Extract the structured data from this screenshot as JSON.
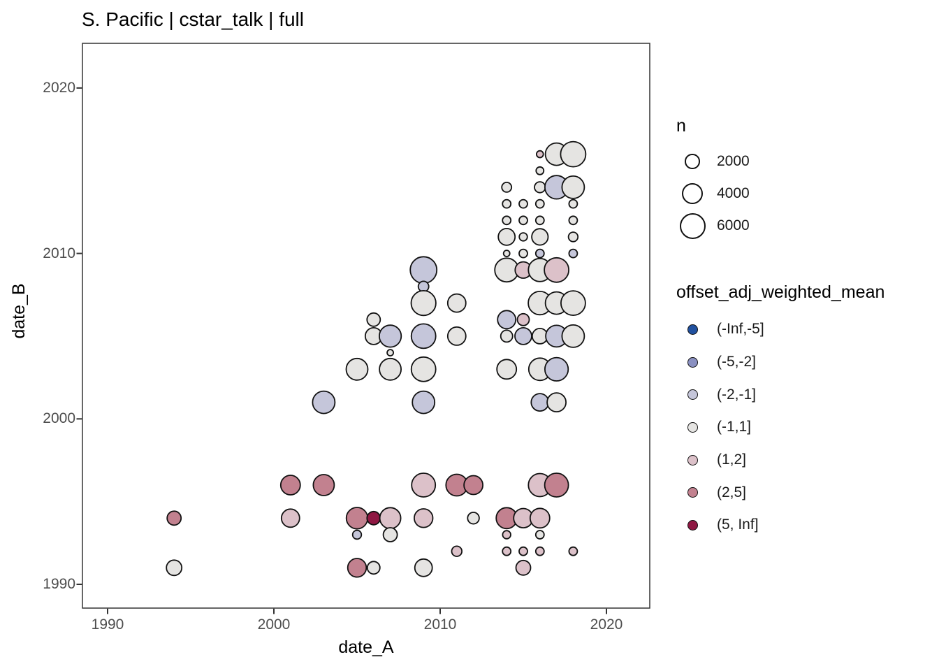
{
  "title": "S. Pacific | cstar_talk | full",
  "axes": {
    "x": {
      "label": "date_A",
      "ticks": [
        "1990",
        "2000",
        "2010",
        "2020"
      ]
    },
    "y": {
      "label": "date_B",
      "ticks": [
        "1990",
        "2000",
        "2010",
        "2020"
      ]
    }
  },
  "legend_size": {
    "title": "n",
    "entries": [
      {
        "n": 2000,
        "label": "2000"
      },
      {
        "n": 4000,
        "label": "4000"
      },
      {
        "n": 6000,
        "label": "6000"
      }
    ]
  },
  "legend_color": {
    "title": "offset_adj_weighted_mean",
    "entries": [
      {
        "label": "(-Inf,-5]",
        "color": "#21519f"
      },
      {
        "label": "(-5,-2]",
        "color": "#8a90c1"
      },
      {
        "label": "(-2,-1]",
        "color": "#c5c6da"
      },
      {
        "label": "(-1,1]",
        "color": "#e5e4e2"
      },
      {
        "label": "(1,2]",
        "color": "#dcc1c9"
      },
      {
        "label": "(2,5]",
        "color": "#c2818f"
      },
      {
        "label": "(5, Inf]",
        "color": "#8f1843"
      }
    ]
  },
  "chart_data": {
    "type": "scatter",
    "title": "S. Pacific | cstar_talk | full",
    "xlabel": "date_A",
    "ylabel": "date_B",
    "x_ticks": [
      1990,
      2000,
      2010,
      2020
    ],
    "y_ticks": [
      1990,
      2000,
      2010,
      2020
    ],
    "xlim": [
      1988.5,
      2022.6
    ],
    "ylim": [
      1988.5,
      2022.9
    ],
    "grid": false,
    "legend_position": "right",
    "size_scale": {
      "name": "n",
      "breaks": [
        2000,
        4000,
        6000
      ],
      "area_proportional": true
    },
    "color_scale": {
      "name": "offset_adj_weighted_mean",
      "bins": [
        "(-Inf,-5]",
        "(-5,-2]",
        "(-2,-1]",
        "(-1,1]",
        "(1,2]",
        "(2,5]",
        "(5, Inf]"
      ]
    },
    "points": [
      {
        "a": 1994,
        "b": 1994,
        "n": 1750,
        "bin": "(2,5]"
      },
      {
        "a": 1994,
        "b": 1991,
        "n": 2120,
        "bin": "(-1,1]"
      },
      {
        "a": 2001,
        "b": 1996,
        "n": 3430,
        "bin": "(2,5]"
      },
      {
        "a": 2001,
        "b": 1994,
        "n": 2960,
        "bin": "(1,2]"
      },
      {
        "a": 2003,
        "b": 2001,
        "n": 4480,
        "bin": "(-2,-1]"
      },
      {
        "a": 2003,
        "b": 1996,
        "n": 3940,
        "bin": "(2,5]"
      },
      {
        "a": 2005,
        "b": 2003,
        "n": 4210,
        "bin": "(-1,1]"
      },
      {
        "a": 2005,
        "b": 1994,
        "n": 4100,
        "bin": "(2,5]"
      },
      {
        "a": 2005,
        "b": 1993,
        "n": 700,
        "bin": "(-2,-1]"
      },
      {
        "a": 2005,
        "b": 1991,
        "n": 3100,
        "bin": "(2,5]"
      },
      {
        "a": 2006,
        "b": 2006,
        "n": 1580,
        "bin": "(-1,1]"
      },
      {
        "a": 2006,
        "b": 2005,
        "n": 2520,
        "bin": "(-1,1]"
      },
      {
        "a": 2006,
        "b": 1994,
        "n": 1580,
        "bin": "(5, Inf]"
      },
      {
        "a": 2006,
        "b": 1991,
        "n": 1420,
        "bin": "(-1,1]"
      },
      {
        "a": 2007,
        "b": 2005,
        "n": 4320,
        "bin": "(-2,-1]"
      },
      {
        "a": 2007,
        "b": 2004,
        "n": 350,
        "bin": "(-1,1]"
      },
      {
        "a": 2007,
        "b": 2003,
        "n": 4210,
        "bin": "(-1,1]"
      },
      {
        "a": 2007,
        "b": 1994,
        "n": 3940,
        "bin": "(1,2]"
      },
      {
        "a": 2007,
        "b": 1993,
        "n": 1750,
        "bin": "(-1,1]"
      },
      {
        "a": 2009,
        "b": 2009,
        "n": 6320,
        "bin": "(-2,-1]"
      },
      {
        "a": 2009,
        "b": 2008,
        "n": 980,
        "bin": "(-2,-1]"
      },
      {
        "a": 2009,
        "b": 2007,
        "n": 5480,
        "bin": "(-1,1]"
      },
      {
        "a": 2009,
        "b": 2005,
        "n": 5360,
        "bin": "(-2,-1]"
      },
      {
        "a": 2009,
        "b": 2003,
        "n": 5360,
        "bin": "(-1,1]"
      },
      {
        "a": 2009,
        "b": 2001,
        "n": 4480,
        "bin": "(-2,-1]"
      },
      {
        "a": 2009,
        "b": 1996,
        "n": 5060,
        "bin": "(1,2]"
      },
      {
        "a": 2009,
        "b": 1994,
        "n": 3100,
        "bin": "(1,2]"
      },
      {
        "a": 2009,
        "b": 1991,
        "n": 2740,
        "bin": "(-1,1]"
      },
      {
        "a": 2011,
        "b": 2007,
        "n": 2960,
        "bin": "(-1,1]"
      },
      {
        "a": 2011,
        "b": 2005,
        "n": 2960,
        "bin": "(-1,1]"
      },
      {
        "a": 2011,
        "b": 1996,
        "n": 4210,
        "bin": "(2,5]"
      },
      {
        "a": 2011,
        "b": 1992,
        "n": 930,
        "bin": "(1,2]"
      },
      {
        "a": 2012,
        "b": 1996,
        "n": 3190,
        "bin": "(2,5]"
      },
      {
        "a": 2012,
        "b": 1994,
        "n": 1210,
        "bin": "(-1,1]"
      },
      {
        "a": 2014,
        "b": 2014,
        "n": 860,
        "bin": "(-1,1]"
      },
      {
        "a": 2014,
        "b": 2013,
        "n": 630,
        "bin": "(-1,1]"
      },
      {
        "a": 2014,
        "b": 2012,
        "n": 630,
        "bin": "(-1,1]"
      },
      {
        "a": 2014,
        "b": 2011,
        "n": 2520,
        "bin": "(-1,1]"
      },
      {
        "a": 2014,
        "b": 2010,
        "n": 350,
        "bin": "(-1,1]"
      },
      {
        "a": 2014,
        "b": 2009,
        "n": 5060,
        "bin": "(-1,1]"
      },
      {
        "a": 2014,
        "b": 2006,
        "n": 2960,
        "bin": "(-2,-1]"
      },
      {
        "a": 2014,
        "b": 2005,
        "n": 1270,
        "bin": "(-1,1]"
      },
      {
        "a": 2014,
        "b": 2003,
        "n": 3430,
        "bin": "(-1,1]"
      },
      {
        "a": 2014,
        "b": 1994,
        "n": 3940,
        "bin": "(2,5]"
      },
      {
        "a": 2014,
        "b": 1993,
        "n": 590,
        "bin": "(1,2]"
      },
      {
        "a": 2014,
        "b": 1992,
        "n": 630,
        "bin": "(1,2]"
      },
      {
        "a": 2015,
        "b": 2013,
        "n": 630,
        "bin": "(-1,1]"
      },
      {
        "a": 2015,
        "b": 2012,
        "n": 630,
        "bin": "(-1,1]"
      },
      {
        "a": 2015,
        "b": 2011,
        "n": 590,
        "bin": "(-1,1]"
      },
      {
        "a": 2015,
        "b": 2010,
        "n": 630,
        "bin": "(-1,1]"
      },
      {
        "a": 2015,
        "b": 2009,
        "n": 2400,
        "bin": "(1,2]"
      },
      {
        "a": 2015,
        "b": 2006,
        "n": 1270,
        "bin": "(1,2]"
      },
      {
        "a": 2015,
        "b": 2005,
        "n": 2520,
        "bin": "(-2,-1]"
      },
      {
        "a": 2015,
        "b": 1994,
        "n": 3330,
        "bin": "(1,2]"
      },
      {
        "a": 2015,
        "b": 1992,
        "n": 630,
        "bin": "(1,2]"
      },
      {
        "a": 2015,
        "b": 1991,
        "n": 1930,
        "bin": "(1,2]"
      },
      {
        "a": 2016,
        "b": 2016,
        "n": 420,
        "bin": "(1,2]"
      },
      {
        "a": 2016,
        "b": 2015,
        "n": 530,
        "bin": "(-1,1]"
      },
      {
        "a": 2016,
        "b": 2014,
        "n": 1070,
        "bin": "(-1,1]"
      },
      {
        "a": 2016,
        "b": 2013,
        "n": 630,
        "bin": "(-1,1]"
      },
      {
        "a": 2016,
        "b": 2012,
        "n": 630,
        "bin": "(-1,1]"
      },
      {
        "a": 2016,
        "b": 2011,
        "n": 2400,
        "bin": "(-1,1]"
      },
      {
        "a": 2016,
        "b": 2010,
        "n": 630,
        "bin": "(-2,-1]"
      },
      {
        "a": 2016,
        "b": 2009,
        "n": 4770,
        "bin": "(-1,1]"
      },
      {
        "a": 2016,
        "b": 2007,
        "n": 4880,
        "bin": "(-1,1]"
      },
      {
        "a": 2016,
        "b": 2005,
        "n": 2120,
        "bin": "(-1,1]"
      },
      {
        "a": 2016,
        "b": 2003,
        "n": 4480,
        "bin": "(-1,1]"
      },
      {
        "a": 2016,
        "b": 2001,
        "n": 2740,
        "bin": "(-2,-1]"
      },
      {
        "a": 2016,
        "b": 1996,
        "n": 4770,
        "bin": "(1,2]"
      },
      {
        "a": 2016,
        "b": 1994,
        "n": 3430,
        "bin": "(1,2]"
      },
      {
        "a": 2016,
        "b": 1993,
        "n": 630,
        "bin": "(-1,1]"
      },
      {
        "a": 2016,
        "b": 1992,
        "n": 630,
        "bin": "(1,2]"
      },
      {
        "a": 2017,
        "b": 2016,
        "n": 4480,
        "bin": "(-1,1]"
      },
      {
        "a": 2017,
        "b": 2014,
        "n": 4880,
        "bin": "(-2,-1]"
      },
      {
        "a": 2017,
        "b": 2009,
        "n": 5360,
        "bin": "(1,2]"
      },
      {
        "a": 2017,
        "b": 2007,
        "n": 4480,
        "bin": "(-1,1]"
      },
      {
        "a": 2017,
        "b": 2005,
        "n": 4210,
        "bin": "(-2,-1]"
      },
      {
        "a": 2017,
        "b": 2003,
        "n": 4880,
        "bin": "(-2,-1]"
      },
      {
        "a": 2017,
        "b": 2001,
        "n": 3190,
        "bin": "(-1,1]"
      },
      {
        "a": 2017,
        "b": 1996,
        "n": 5060,
        "bin": "(2,5]"
      },
      {
        "a": 2018,
        "b": 2016,
        "n": 5670,
        "bin": "(-1,1]"
      },
      {
        "a": 2018,
        "b": 2014,
        "n": 4480,
        "bin": "(-1,1]"
      },
      {
        "a": 2018,
        "b": 2013,
        "n": 630,
        "bin": "(-1,1]"
      },
      {
        "a": 2018,
        "b": 2012,
        "n": 630,
        "bin": "(-1,1]"
      },
      {
        "a": 2018,
        "b": 2011,
        "n": 810,
        "bin": "(-1,1]"
      },
      {
        "a": 2018,
        "b": 2010,
        "n": 630,
        "bin": "(-2,-1]"
      },
      {
        "a": 2018,
        "b": 2007,
        "n": 5360,
        "bin": "(-1,1]"
      },
      {
        "a": 2018,
        "b": 2005,
        "n": 4480,
        "bin": "(-1,1]"
      },
      {
        "a": 2018,
        "b": 1992,
        "n": 630,
        "bin": "(1,2]"
      }
    ]
  }
}
